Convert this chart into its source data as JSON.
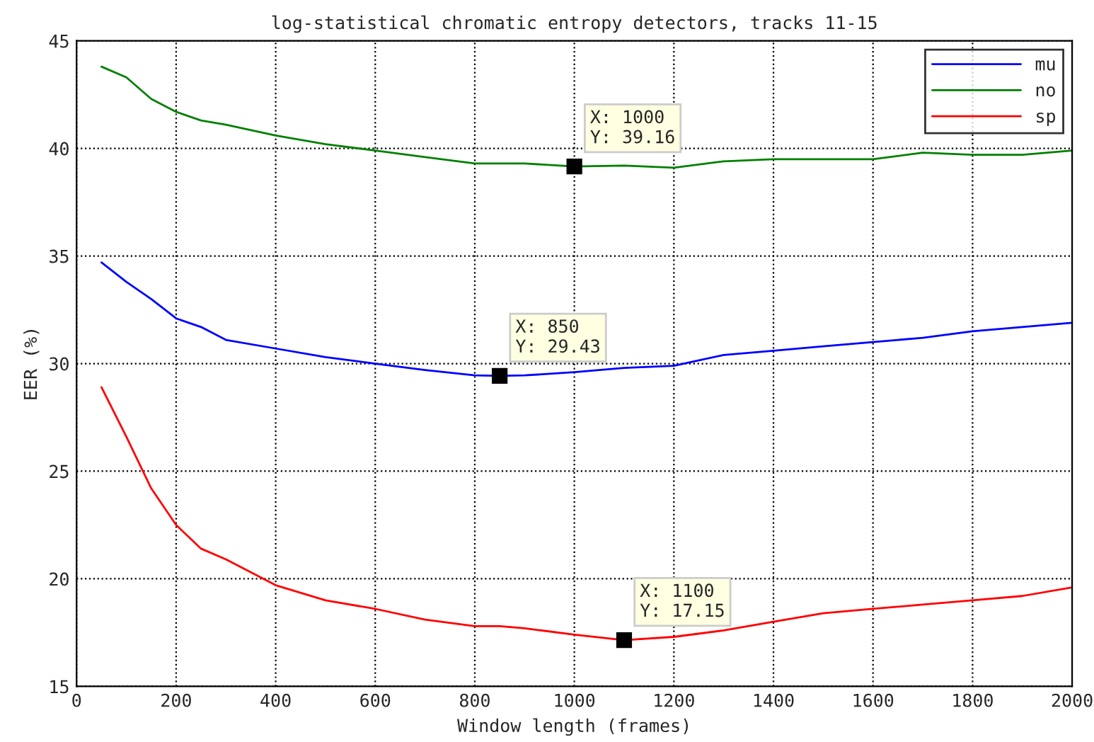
{
  "chart_data": {
    "type": "line",
    "title": "log-statistical chromatic entropy detectors, tracks 11-15",
    "xlabel": "Window length (frames)",
    "ylabel": "EER (%)",
    "x": [
      50,
      100,
      150,
      200,
      250,
      300,
      400,
      500,
      600,
      700,
      800,
      850,
      900,
      1000,
      1100,
      1200,
      1300,
      1400,
      1500,
      1600,
      1700,
      1800,
      1900,
      2000
    ],
    "series": [
      {
        "name": "mu",
        "color": "#0000ff",
        "values": [
          34.7,
          33.8,
          33.0,
          32.1,
          31.7,
          31.1,
          30.7,
          30.3,
          30.0,
          29.7,
          29.45,
          29.43,
          29.45,
          29.6,
          29.8,
          29.9,
          30.4,
          30.6,
          30.8,
          31.0,
          31.2,
          31.5,
          31.7,
          31.9
        ]
      },
      {
        "name": "no",
        "color": "#008000",
        "values": [
          43.8,
          43.3,
          42.3,
          41.7,
          41.3,
          41.1,
          40.6,
          40.2,
          39.9,
          39.6,
          39.3,
          39.3,
          39.3,
          39.16,
          39.2,
          39.1,
          39.4,
          39.5,
          39.5,
          39.5,
          39.8,
          39.7,
          39.7,
          39.9
        ]
      },
      {
        "name": "sp",
        "color": "#ff0000",
        "values": [
          28.9,
          26.6,
          24.2,
          22.5,
          21.4,
          20.9,
          19.7,
          19.0,
          18.6,
          18.1,
          17.8,
          17.8,
          17.7,
          17.4,
          17.15,
          17.3,
          17.6,
          18.0,
          18.4,
          18.6,
          18.8,
          19.0,
          19.2,
          19.6
        ]
      }
    ],
    "annotations": [
      {
        "text": "X: 1000\nY: 39.16",
        "x": 1000,
        "y": 39.16
      },
      {
        "text": "X: 850\nY: 29.43",
        "x": 850,
        "y": 29.43
      },
      {
        "text": "X: 1100\nY: 17.15",
        "x": 1100,
        "y": 17.15
      }
    ],
    "xlim": [
      0,
      2000
    ],
    "xticks": [
      0,
      200,
      400,
      600,
      800,
      1000,
      1200,
      1400,
      1600,
      1800,
      2000
    ],
    "ylim": [
      15,
      45
    ],
    "yticks": [
      15,
      20,
      25,
      30,
      35,
      40,
      45
    ],
    "grid": true,
    "legend": "top right",
    "line_style": "solid",
    "marker": "none"
  }
}
